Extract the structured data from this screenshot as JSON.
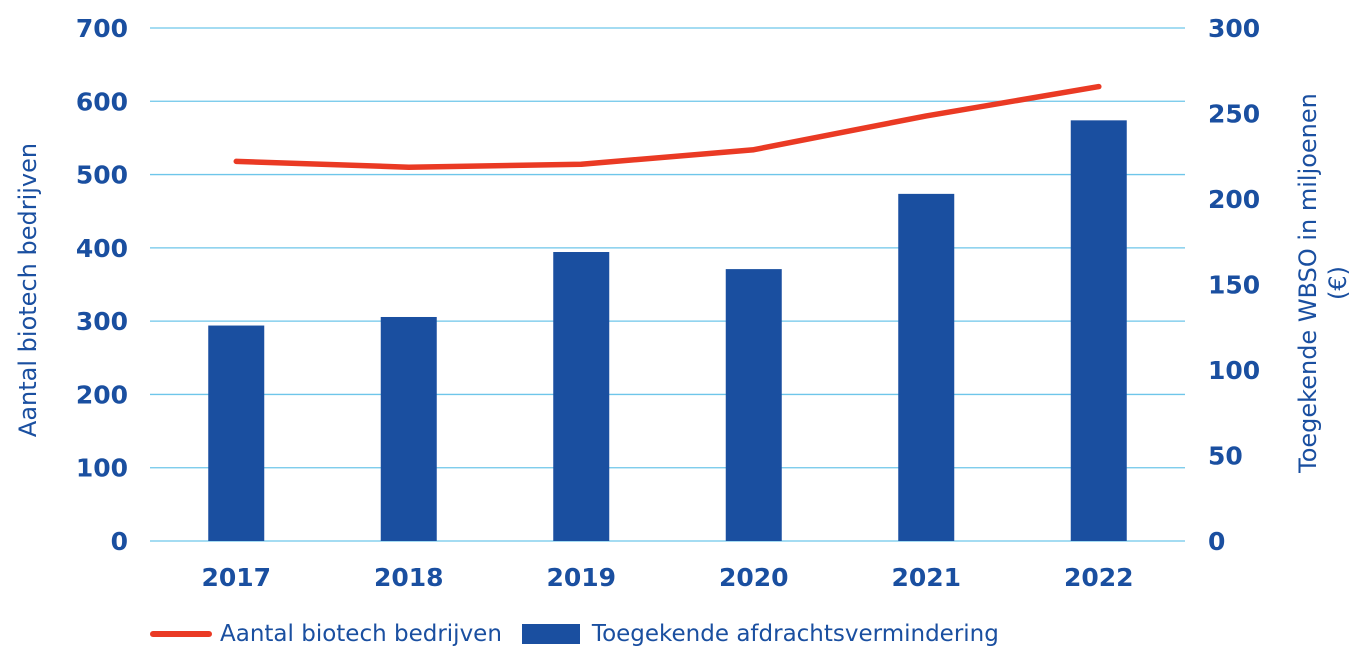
{
  "chart_data": {
    "type": "bar+line",
    "categories": [
      "2017",
      "2018",
      "2019",
      "2020",
      "2021",
      "2022"
    ],
    "series": [
      {
        "name": "Aantal biotech bedrijven",
        "type": "line",
        "axis": "left",
        "color": "#ea3a24",
        "values": [
          518,
          510,
          514,
          534,
          580,
          620
        ]
      },
      {
        "name": "Toegekende afdrachtsvermindering",
        "type": "bar",
        "axis": "right",
        "color": "#1a4fa0",
        "values": [
          126,
          131,
          169,
          159,
          203,
          246
        ]
      }
    ],
    "y_left": {
      "label": "Aantal biotech bedrijven",
      "lim": [
        0,
        700
      ],
      "ticks": [
        "0",
        "100",
        "200",
        "300",
        "400",
        "500",
        "600",
        "700"
      ]
    },
    "y_right": {
      "label_line1": "Toegekende WBSO in miljoenen",
      "label_line2": "(€)",
      "lim": [
        0,
        300
      ],
      "ticks": [
        "0",
        "50",
        "100",
        "150",
        "200",
        "250",
        "300"
      ]
    },
    "grid": true,
    "grid_color": "#6ec6ea",
    "legend_position": "bottom"
  }
}
